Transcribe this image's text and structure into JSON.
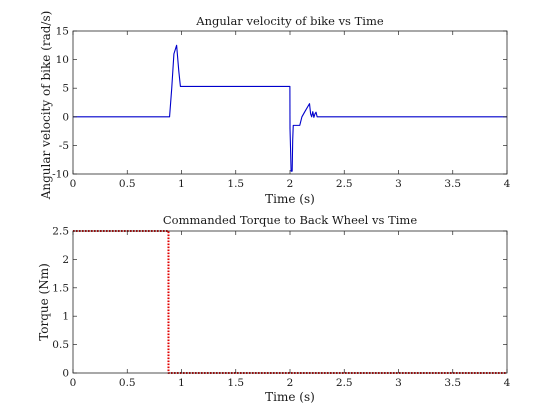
{
  "chart_data": [
    {
      "type": "line",
      "title": "Angular velocity of bike vs Time",
      "xlabel": "Time (s)",
      "ylabel": "Angular velocity of bike (rad/s)",
      "xlim": [
        0,
        4
      ],
      "ylim": [
        -10,
        15
      ],
      "xticks": [
        0,
        0.5,
        1,
        1.5,
        2,
        2.5,
        3,
        3.5,
        4
      ],
      "yticks": [
        -10,
        -5,
        0,
        5,
        10,
        15
      ],
      "grid": false,
      "series": [
        {
          "color": "#0000cc",
          "style": "solid",
          "x": [
            0,
            0.89,
            0.91,
            0.93,
            0.955,
            0.975,
            0.99,
            1.1,
            1.5,
            1.999,
            2.0,
            2.005,
            2.01,
            2.02,
            2.025,
            2.03,
            2.08,
            2.09,
            2.11,
            2.14,
            2.18,
            2.19,
            2.2,
            2.21,
            2.22,
            2.23,
            2.24,
            2.25,
            2.26,
            2.5,
            3,
            4
          ],
          "y": [
            0,
            0,
            5,
            11,
            12.5,
            8,
            5.3,
            5.3,
            5.3,
            5.3,
            -2,
            -5.5,
            -9.5,
            -9.5,
            -4,
            -1.5,
            -1.5,
            -1.5,
            0,
            1,
            2.3,
            0.5,
            0,
            0.9,
            -0.1,
            0.5,
            0.8,
            0,
            0,
            0,
            0,
            0
          ]
        }
      ]
    },
    {
      "type": "line",
      "title": "Commanded Torque to Back Wheel vs Time",
      "xlabel": "Time (s)",
      "ylabel": "Torque (Nm)",
      "xlim": [
        0,
        4
      ],
      "ylim": [
        0,
        2.5
      ],
      "xticks": [
        0,
        0.5,
        1,
        1.5,
        2,
        2.5,
        3,
        3.5,
        4
      ],
      "yticks": [
        0,
        0.5,
        1,
        1.5,
        2,
        2.5
      ],
      "grid": false,
      "series": [
        {
          "color": "#e00000",
          "style": "dotted",
          "x": [
            0,
            0.88,
            0.88,
            4
          ],
          "y": [
            2.5,
            2.5,
            0,
            0
          ]
        }
      ]
    }
  ]
}
